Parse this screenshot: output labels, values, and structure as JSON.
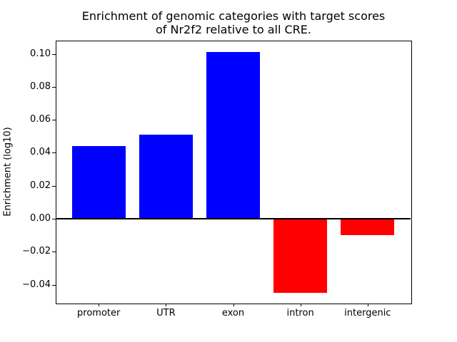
{
  "figure": {
    "title": "Enrichment of genomic categories with target scores\nof Nr2f2 relative to all CRE."
  },
  "chart_data": {
    "type": "bar",
    "title": "Enrichment of genomic categories with target scores of Nr2f2 relative to all CRE.",
    "categories": [
      "promoter",
      "UTR",
      "exon",
      "intron",
      "intergenic"
    ],
    "values": [
      0.044,
      0.051,
      0.101,
      -0.045,
      -0.01
    ],
    "bar_colors": [
      "#0000ff",
      "#0000ff",
      "#0000ff",
      "#ff0000",
      "#ff0000"
    ],
    "positive_color": "#0000ff",
    "negative_color": "#ff0000",
    "xlabel": "",
    "ylabel": "Enrichment (log10)",
    "ylim": [
      -0.051,
      0.108
    ],
    "xlim": [
      -0.64,
      4.64
    ],
    "bar_width": 0.8,
    "yticks": [
      {
        "value": 0.1,
        "label": "0.10"
      },
      {
        "value": 0.08,
        "label": "0.08"
      },
      {
        "value": 0.06,
        "label": "0.06"
      },
      {
        "value": 0.04,
        "label": "0.04"
      },
      {
        "value": 0.02,
        "label": "0.02"
      },
      {
        "value": 0.0,
        "label": "0.00"
      },
      {
        "value": -0.02,
        "label": "−0.02"
      },
      {
        "value": -0.04,
        "label": "−0.04"
      }
    ],
    "grid": false,
    "legend": "none",
    "zero_line": true,
    "background_color": "#ffffff",
    "axis_color": "#000000"
  }
}
